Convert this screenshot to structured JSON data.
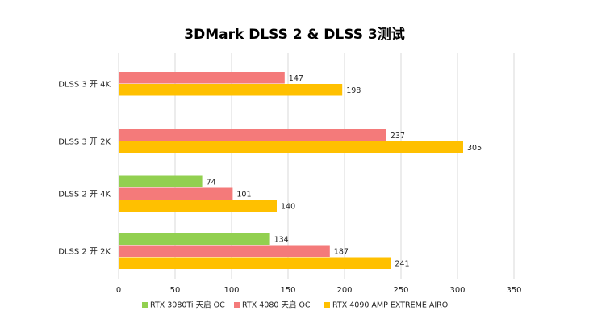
{
  "chart_data": {
    "type": "bar",
    "orientation": "horizontal",
    "title": "3DMark DLSS 2 & DLSS 3测试",
    "categories": [
      "DLSS 3 开 4K",
      "DLSS 3 开 2K",
      "DLSS 2 开 4K",
      "DLSS 2 开 2K"
    ],
    "series": [
      {
        "name": "RTX 3080Ti 天启 OC",
        "color": "#92d050",
        "values": [
          null,
          null,
          74,
          134
        ]
      },
      {
        "name": "RTX 4080 天启 OC",
        "color": "#f47a7a",
        "values": [
          147,
          237,
          101,
          187
        ]
      },
      {
        "name": "RTX 4090 AMP  EXTREME AIRO",
        "color": "#ffc000",
        "values": [
          198,
          305,
          140,
          241
        ]
      }
    ],
    "xlim": [
      0,
      350
    ],
    "xticks": [
      0,
      50,
      100,
      150,
      200,
      250,
      300,
      350
    ],
    "grid": true,
    "legend_position": "bottom"
  }
}
